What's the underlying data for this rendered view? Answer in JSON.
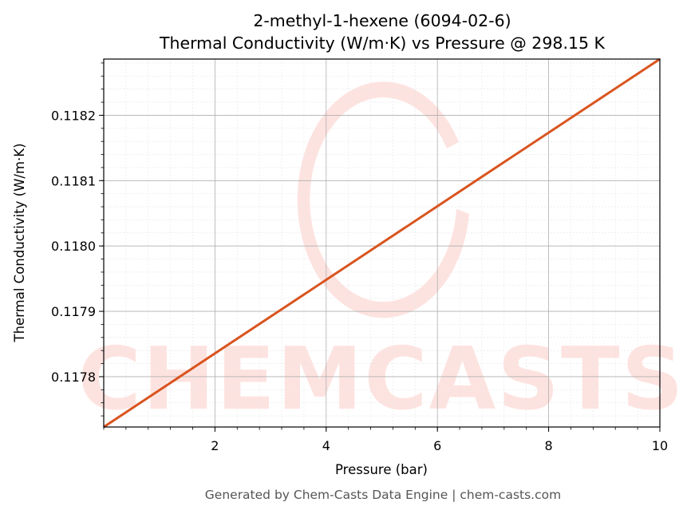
{
  "chart_data": {
    "type": "line",
    "title": "2-methyl-1-hexene (6094-02-6)",
    "subtitle": "Thermal Conductivity (W/m·K) vs Pressure @ 298.15 K",
    "xlabel": "Pressure (bar)",
    "ylabel": "Thermal Conductivity (W/m·K)",
    "xlim": [
      0.0,
      10.0
    ],
    "ylim": [
      0.117723,
      0.118286
    ],
    "x_ticks": [
      2,
      4,
      6,
      8,
      10
    ],
    "x_tick_labels": [
      "2",
      "4",
      "6",
      "8",
      "10"
    ],
    "y_ticks": [
      0.1178,
      0.1179,
      0.118,
      0.1181,
      0.1182
    ],
    "y_tick_labels": [
      "0.1178",
      "0.1179",
      "0.1180",
      "0.1181",
      "0.1182"
    ],
    "grid": true,
    "series": [
      {
        "color": "#d9541e",
        "x": [
          0.0,
          10.0
        ],
        "y": [
          0.117723,
          0.118286
        ]
      }
    ]
  },
  "watermark": {
    "text": "CHEMCASTS",
    "color": "#fde3e0"
  },
  "footer": "Generated by Chem-Casts Data Engine | chem-casts.com"
}
